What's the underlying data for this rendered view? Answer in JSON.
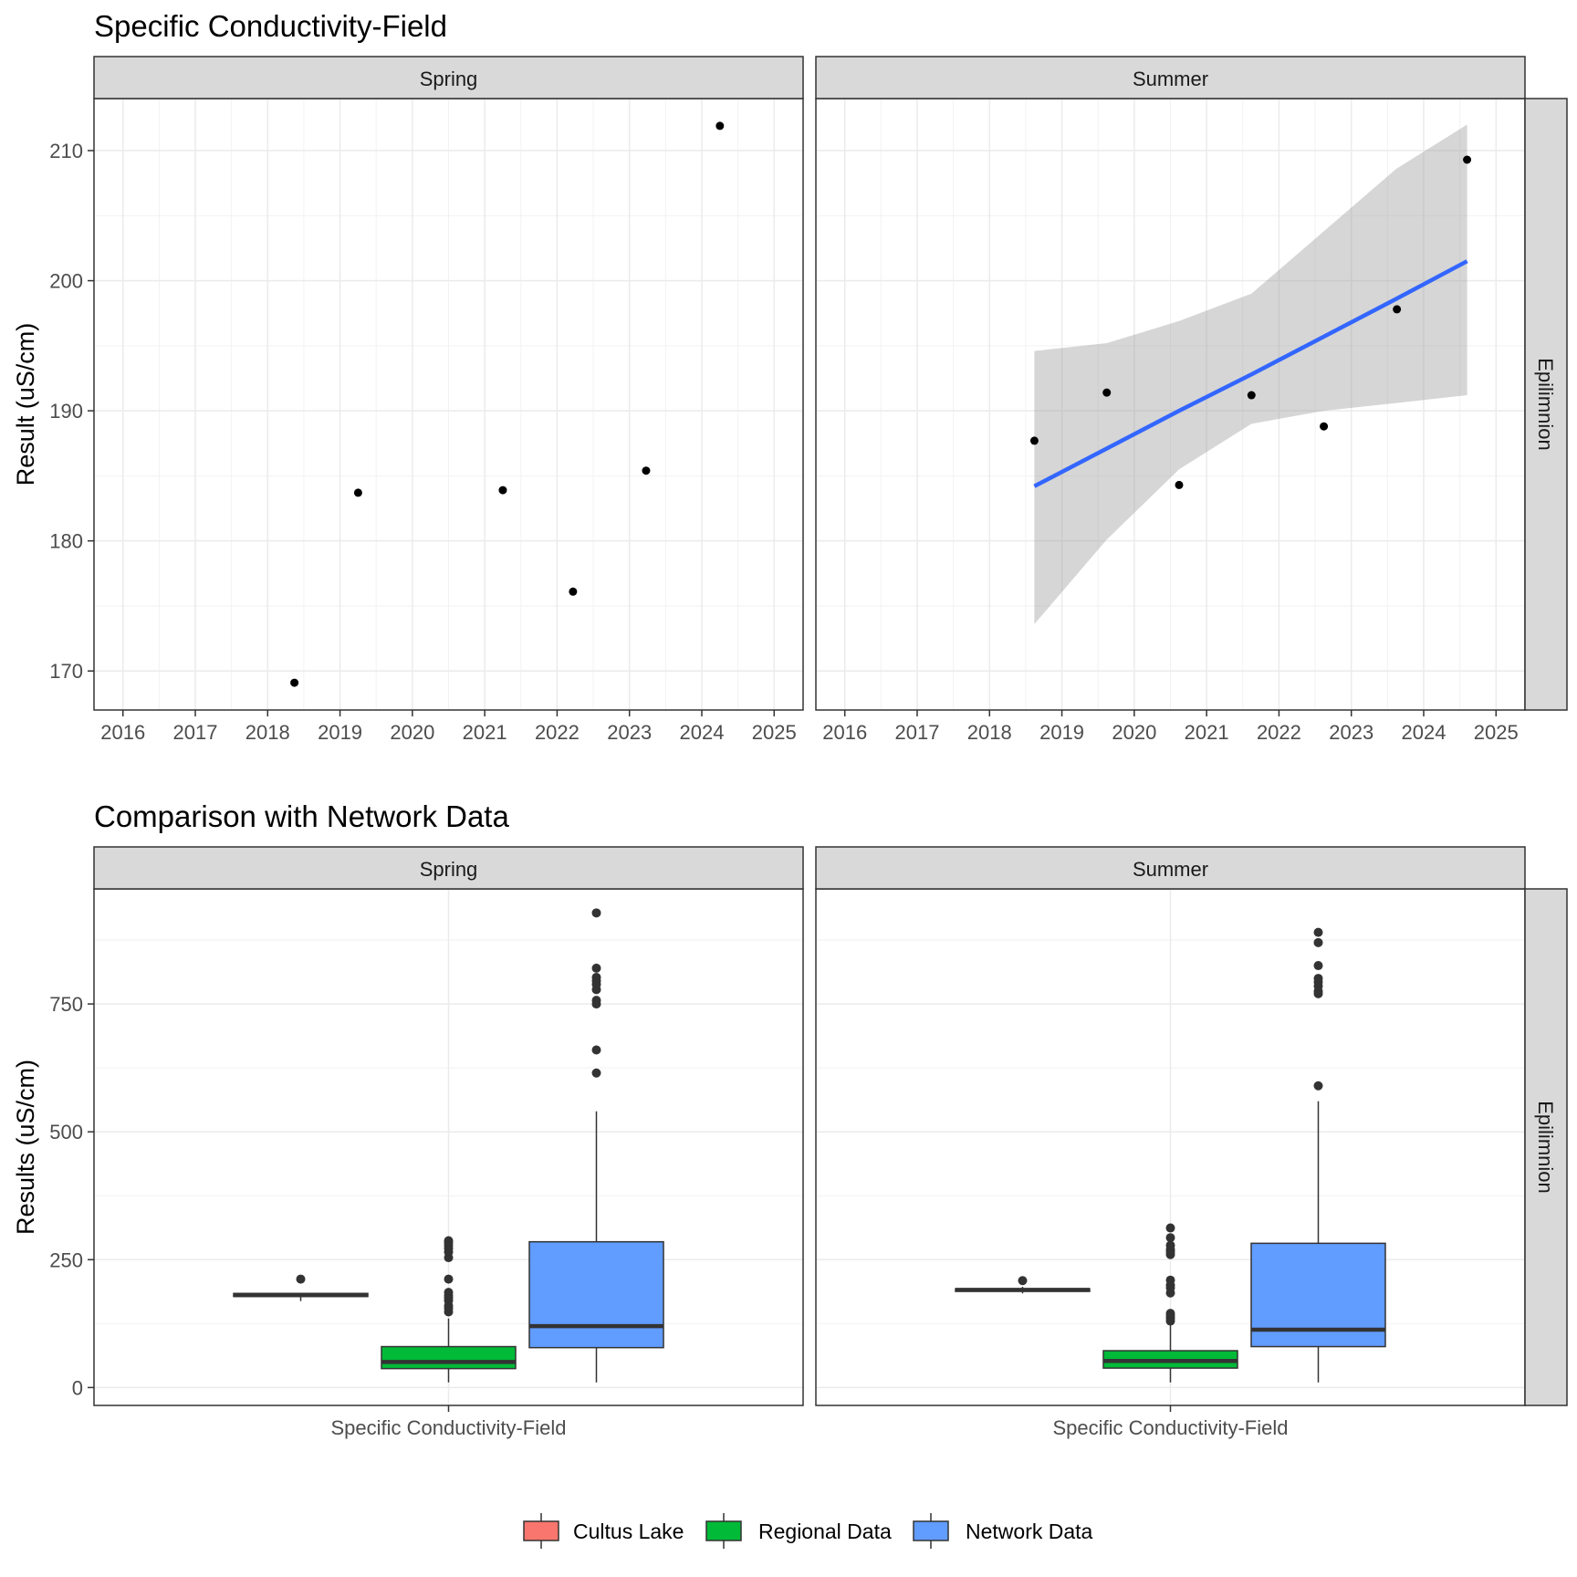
{
  "chart_data": [
    {
      "type": "scatter",
      "title": "Specific Conductivity-Field",
      "ylabel": "Result (uS/cm)",
      "xlabel": "",
      "xlim": [
        2015.6,
        2025.4
      ],
      "ylim": [
        167.0,
        214.0
      ],
      "x_ticks": [
        2016,
        2017,
        2018,
        2019,
        2020,
        2021,
        2022,
        2023,
        2024,
        2025
      ],
      "y_ticks": [
        170,
        180,
        190,
        200,
        210
      ],
      "row_strip": "Epilimnion",
      "panels": [
        {
          "facet": "Spring",
          "points": [
            {
              "x": 2018.37,
              "y": 169.1
            },
            {
              "x": 2019.25,
              "y": 183.7
            },
            {
              "x": 2021.25,
              "y": 183.9
            },
            {
              "x": 2022.22,
              "y": 176.1
            },
            {
              "x": 2023.23,
              "y": 185.4
            },
            {
              "x": 2024.25,
              "y": 211.9
            }
          ]
        },
        {
          "facet": "Summer",
          "points": [
            {
              "x": 2018.62,
              "y": 187.7
            },
            {
              "x": 2019.62,
              "y": 191.4
            },
            {
              "x": 2020.62,
              "y": 184.3
            },
            {
              "x": 2021.62,
              "y": 191.2
            },
            {
              "x": 2022.62,
              "y": 188.8
            },
            {
              "x": 2023.63,
              "y": 197.8
            },
            {
              "x": 2024.6,
              "y": 209.3
            }
          ],
          "trend": {
            "x": [
              2018.62,
              2019.62,
              2020.62,
              2021.62,
              2022.62,
              2023.62,
              2024.6
            ],
            "fit": [
              184.2,
              187.1,
              190.0,
              192.8,
              195.7,
              198.6,
              201.5
            ],
            "lower": [
              173.6,
              180.1,
              185.5,
              189.0,
              190.0,
              190.6,
              191.2
            ],
            "upper": [
              194.6,
              195.2,
              196.9,
              199.0,
              203.8,
              208.6,
              212.0
            ],
            "color": "#3366FF",
            "ribbon_color": "#999999"
          }
        }
      ]
    },
    {
      "type": "box",
      "title": "Comparison with Network Data",
      "ylabel": "Results (uS/cm)",
      "x_category": "Specific Conductivity-Field",
      "ylim": [
        -35,
        975
      ],
      "y_ticks": [
        0,
        250,
        500,
        750
      ],
      "row_strip": "Epilimnion",
      "legend": [
        {
          "label": "Cultus Lake",
          "color": "#F8766D"
        },
        {
          "label": "Regional Data",
          "color": "#00BA38"
        },
        {
          "label": "Network Data",
          "color": "#619CFF"
        }
      ],
      "panels": [
        {
          "facet": "Spring",
          "groups": [
            {
              "name": "Cultus Lake",
              "color": "#F8766D",
              "whisker_low": 169,
              "q1": 178,
              "median": 181,
              "q3": 184,
              "whisker_high": 185,
              "outliers": [
                212
              ]
            },
            {
              "name": "Regional Data",
              "color": "#00BA38",
              "whisker_low": 10,
              "q1": 37,
              "median": 50,
              "q3": 80,
              "whisker_high": 135,
              "outliers": [
                148,
                155,
                160,
                170,
                175,
                180,
                186,
                212,
                254,
                265,
                272,
                278,
                283,
                287
              ]
            },
            {
              "name": "Network Data",
              "color": "#619CFF",
              "whisker_low": 10,
              "q1": 78,
              "median": 120,
              "q3": 285,
              "whisker_high": 540,
              "outliers": [
                615,
                660,
                750,
                757,
                778,
                788,
                795,
                802,
                820,
                928
              ]
            }
          ]
        },
        {
          "facet": "Summer",
          "groups": [
            {
              "name": "Cultus Lake",
              "color": "#F8766D",
              "whisker_low": 184,
              "q1": 188,
              "median": 191,
              "q3": 193,
              "whisker_high": 197,
              "outliers": [
                209
              ]
            },
            {
              "name": "Regional Data",
              "color": "#00BA38",
              "whisker_low": 10,
              "q1": 38,
              "median": 52,
              "q3": 72,
              "whisker_high": 125,
              "outliers": [
                130,
                135,
                140,
                145,
                185,
                195,
                200,
                210,
                260,
                265,
                270,
                278,
                293,
                312
              ]
            },
            {
              "name": "Network Data",
              "color": "#619CFF",
              "whisker_low": 10,
              "q1": 80,
              "median": 113,
              "q3": 282,
              "whisker_high": 560,
              "outliers": [
                590,
                770,
                775,
                785,
                793,
                800,
                825,
                870,
                890
              ]
            }
          ]
        }
      ]
    }
  ]
}
